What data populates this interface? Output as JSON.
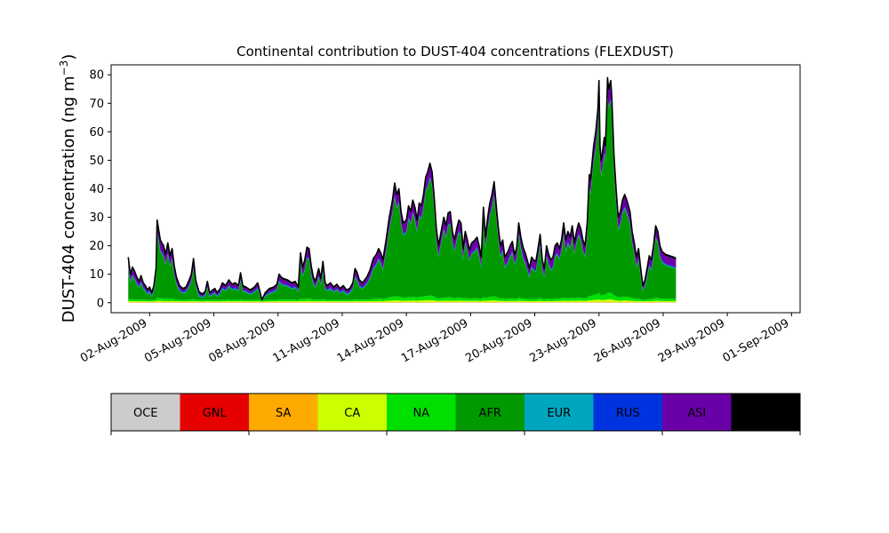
{
  "chart_data": {
    "type": "area",
    "title": "Continental contribution to DUST-404 concentrations (FLEXDUST)",
    "ylabel_main": "DUST-404 concentration (ng m",
    "ylabel_sup": "−3",
    "ylabel_close": ")",
    "ylim": [
      -3.5,
      83.5
    ],
    "xlim": [
      -0.8,
      31.4
    ],
    "yticks": [
      0,
      10,
      20,
      30,
      40,
      50,
      60,
      70,
      80
    ],
    "x_tick_positions_days": [
      1,
      4,
      7,
      10,
      13,
      16,
      19,
      22,
      25,
      28,
      31
    ],
    "x_tick_labels": [
      "02-Aug-2009",
      "05-Aug-2009",
      "08-Aug-2009",
      "11-Aug-2009",
      "14-Aug-2009",
      "17-Aug-2009",
      "20-Aug-2009",
      "23-Aug-2009",
      "26-Aug-2009",
      "29-Aug-2009",
      "01-Sep-2009"
    ],
    "x_start_date": "01-Aug-2009",
    "series_order": [
      "OCE",
      "GNL",
      "SA",
      "CA",
      "NA",
      "AFR",
      "EUR",
      "RUS",
      "ASI",
      "AUS"
    ],
    "series_colors": [
      "#cccccc",
      "#e60000",
      "#ffaa00",
      "#ccff00",
      "#00e000",
      "#009a00",
      "#00a5bf",
      "#0033e0",
      "#6a00a8",
      "#000000"
    ],
    "total": [
      [
        0.0,
        16.0
      ],
      [
        0.1,
        10.0
      ],
      [
        0.2,
        12.5
      ],
      [
        0.3,
        11.0
      ],
      [
        0.4,
        9.0
      ],
      [
        0.5,
        7.5
      ],
      [
        0.6,
        9.5
      ],
      [
        0.7,
        7.0
      ],
      [
        0.8,
        6.0
      ],
      [
        0.9,
        4.5
      ],
      [
        1.0,
        5.5
      ],
      [
        1.1,
        3.5
      ],
      [
        1.2,
        6.0
      ],
      [
        1.3,
        12.0
      ],
      [
        1.35,
        29.0
      ],
      [
        1.5,
        22.0
      ],
      [
        1.65,
        20.0
      ],
      [
        1.75,
        17.0
      ],
      [
        1.85,
        21.0
      ],
      [
        1.95,
        16.5
      ],
      [
        2.05,
        19.0
      ],
      [
        2.15,
        13.0
      ],
      [
        2.25,
        9.0
      ],
      [
        2.4,
        6.0
      ],
      [
        2.55,
        5.0
      ],
      [
        2.7,
        5.5
      ],
      [
        2.85,
        8.0
      ],
      [
        2.95,
        10.0
      ],
      [
        3.05,
        15.5
      ],
      [
        3.15,
        8.0
      ],
      [
        3.3,
        4.0
      ],
      [
        3.45,
        3.0
      ],
      [
        3.6,
        4.0
      ],
      [
        3.7,
        7.5
      ],
      [
        3.8,
        3.5
      ],
      [
        3.95,
        4.5
      ],
      [
        4.05,
        5.0
      ],
      [
        4.15,
        3.5
      ],
      [
        4.3,
        5.0
      ],
      [
        4.4,
        7.0
      ],
      [
        4.55,
        6.0
      ],
      [
        4.7,
        8.0
      ],
      [
        4.85,
        6.5
      ],
      [
        5.0,
        7.0
      ],
      [
        5.15,
        6.0
      ],
      [
        5.25,
        10.5
      ],
      [
        5.35,
        6.0
      ],
      [
        5.5,
        5.5
      ],
      [
        5.7,
        4.5
      ],
      [
        5.9,
        5.5
      ],
      [
        6.05,
        7.0
      ],
      [
        6.15,
        4.0
      ],
      [
        6.25,
        1.0
      ],
      [
        6.4,
        3.5
      ],
      [
        6.6,
        5.0
      ],
      [
        6.8,
        5.5
      ],
      [
        6.95,
        6.5
      ],
      [
        7.05,
        10.0
      ],
      [
        7.15,
        9.0
      ],
      [
        7.25,
        8.5
      ],
      [
        7.45,
        8.0
      ],
      [
        7.65,
        7.0
      ],
      [
        7.8,
        7.5
      ],
      [
        7.95,
        5.5
      ],
      [
        8.05,
        17.5
      ],
      [
        8.15,
        12.5
      ],
      [
        8.25,
        15.0
      ],
      [
        8.35,
        19.5
      ],
      [
        8.45,
        19.0
      ],
      [
        8.55,
        13.0
      ],
      [
        8.65,
        9.0
      ],
      [
        8.75,
        7.5
      ],
      [
        8.9,
        12.0
      ],
      [
        9.0,
        8.5
      ],
      [
        9.1,
        14.5
      ],
      [
        9.2,
        7.0
      ],
      [
        9.3,
        6.0
      ],
      [
        9.45,
        7.0
      ],
      [
        9.6,
        5.5
      ],
      [
        9.75,
        6.5
      ],
      [
        9.9,
        5.0
      ],
      [
        10.05,
        6.0
      ],
      [
        10.2,
        4.5
      ],
      [
        10.35,
        5.0
      ],
      [
        10.5,
        7.0
      ],
      [
        10.6,
        12.0
      ],
      [
        10.7,
        10.5
      ],
      [
        10.8,
        8.0
      ],
      [
        10.95,
        7.0
      ],
      [
        11.15,
        9.0
      ],
      [
        11.3,
        11.5
      ],
      [
        11.45,
        15.5
      ],
      [
        11.6,
        17.0
      ],
      [
        11.7,
        19.0
      ],
      [
        11.8,
        17.5
      ],
      [
        11.9,
        15.0
      ],
      [
        12.05,
        22.0
      ],
      [
        12.2,
        30.0
      ],
      [
        12.35,
        36.0
      ],
      [
        12.45,
        42.0
      ],
      [
        12.55,
        38.0
      ],
      [
        12.65,
        40.0
      ],
      [
        12.75,
        32.0
      ],
      [
        12.85,
        28.0
      ],
      [
        13.0,
        29.0
      ],
      [
        13.1,
        34.0
      ],
      [
        13.2,
        32.0
      ],
      [
        13.3,
        36.0
      ],
      [
        13.4,
        33.5
      ],
      [
        13.5,
        29.0
      ],
      [
        13.6,
        35.0
      ],
      [
        13.7,
        34.0
      ],
      [
        13.8,
        38.0
      ],
      [
        13.9,
        44.0
      ],
      [
        14.0,
        46.0
      ],
      [
        14.1,
        49.0
      ],
      [
        14.2,
        46.0
      ],
      [
        14.3,
        37.0
      ],
      [
        14.4,
        26.0
      ],
      [
        14.5,
        20.0
      ],
      [
        14.6,
        24.0
      ],
      [
        14.75,
        30.0
      ],
      [
        14.85,
        27.0
      ],
      [
        14.95,
        31.5
      ],
      [
        15.05,
        32.0
      ],
      [
        15.15,
        25.0
      ],
      [
        15.25,
        22.0
      ],
      [
        15.35,
        26.0
      ],
      [
        15.45,
        29.0
      ],
      [
        15.55,
        28.0
      ],
      [
        15.65,
        19.0
      ],
      [
        15.75,
        25.0
      ],
      [
        15.85,
        22.0
      ],
      [
        15.95,
        18.5
      ],
      [
        16.05,
        21.0
      ],
      [
        16.2,
        22.0
      ],
      [
        16.3,
        23.0
      ],
      [
        16.4,
        20.0
      ],
      [
        16.5,
        16.0
      ],
      [
        16.6,
        33.5
      ],
      [
        16.7,
        23.0
      ],
      [
        16.8,
        30.0
      ],
      [
        16.9,
        35.0
      ],
      [
        17.0,
        38.0
      ],
      [
        17.1,
        42.5
      ],
      [
        17.2,
        34.0
      ],
      [
        17.3,
        26.0
      ],
      [
        17.4,
        20.0
      ],
      [
        17.5,
        22.0
      ],
      [
        17.6,
        16.0
      ],
      [
        17.75,
        18.0
      ],
      [
        17.85,
        20.0
      ],
      [
        17.95,
        21.5
      ],
      [
        18.05,
        17.0
      ],
      [
        18.15,
        19.0
      ],
      [
        18.25,
        28.0
      ],
      [
        18.35,
        23.0
      ],
      [
        18.45,
        19.5
      ],
      [
        18.55,
        17.5
      ],
      [
        18.65,
        15.0
      ],
      [
        18.75,
        12.0
      ],
      [
        18.85,
        16.0
      ],
      [
        18.95,
        15.0
      ],
      [
        19.05,
        14.5
      ],
      [
        19.15,
        19.0
      ],
      [
        19.25,
        24.0
      ],
      [
        19.35,
        15.0
      ],
      [
        19.45,
        12.0
      ],
      [
        19.55,
        20.0
      ],
      [
        19.65,
        17.0
      ],
      [
        19.75,
        15.0
      ],
      [
        19.85,
        16.0
      ],
      [
        19.95,
        20.0
      ],
      [
        20.05,
        21.0
      ],
      [
        20.15,
        19.0
      ],
      [
        20.25,
        22.0
      ],
      [
        20.35,
        28.0
      ],
      [
        20.45,
        22.0
      ],
      [
        20.55,
        25.0
      ],
      [
        20.65,
        23.0
      ],
      [
        20.75,
        27.0
      ],
      [
        20.85,
        21.0
      ],
      [
        20.95,
        25.0
      ],
      [
        21.05,
        28.0
      ],
      [
        21.15,
        26.0
      ],
      [
        21.25,
        22.0
      ],
      [
        21.35,
        20.0
      ],
      [
        21.45,
        28.0
      ],
      [
        21.55,
        45.0
      ],
      [
        21.6,
        43.0
      ],
      [
        21.65,
        47.0
      ],
      [
        21.75,
        55.0
      ],
      [
        21.85,
        60.0
      ],
      [
        21.95,
        68.0
      ],
      [
        22.0,
        78.0
      ],
      [
        22.05,
        55.0
      ],
      [
        22.1,
        50.0
      ],
      [
        22.15,
        52.0
      ],
      [
        22.25,
        58.0
      ],
      [
        22.3,
        55.0
      ],
      [
        22.35,
        65.0
      ],
      [
        22.4,
        79.0
      ],
      [
        22.45,
        75.0
      ],
      [
        22.55,
        78.0
      ],
      [
        22.6,
        72.0
      ],
      [
        22.7,
        52.0
      ],
      [
        22.8,
        40.0
      ],
      [
        22.9,
        30.0
      ],
      [
        23.0,
        32.0
      ],
      [
        23.1,
        36.0
      ],
      [
        23.2,
        38.0
      ],
      [
        23.3,
        36.0
      ],
      [
        23.45,
        32.0
      ],
      [
        23.55,
        25.0
      ],
      [
        23.65,
        21.0
      ],
      [
        23.75,
        16.0
      ],
      [
        23.85,
        19.0
      ],
      [
        23.95,
        12.0
      ],
      [
        24.05,
        6.0
      ],
      [
        24.15,
        8.0
      ],
      [
        24.25,
        12.0
      ],
      [
        24.35,
        16.5
      ],
      [
        24.45,
        15.0
      ],
      [
        24.55,
        20.0
      ],
      [
        24.65,
        27.0
      ],
      [
        24.75,
        25.0
      ],
      [
        24.85,
        20.0
      ],
      [
        24.95,
        18.0
      ],
      [
        25.1,
        17.0
      ],
      [
        25.3,
        16.5
      ],
      [
        25.5,
        16.0
      ],
      [
        25.6,
        15.5
      ]
    ],
    "afr_fraction_mean": 0.88,
    "na_band_max": 2.5
  }
}
